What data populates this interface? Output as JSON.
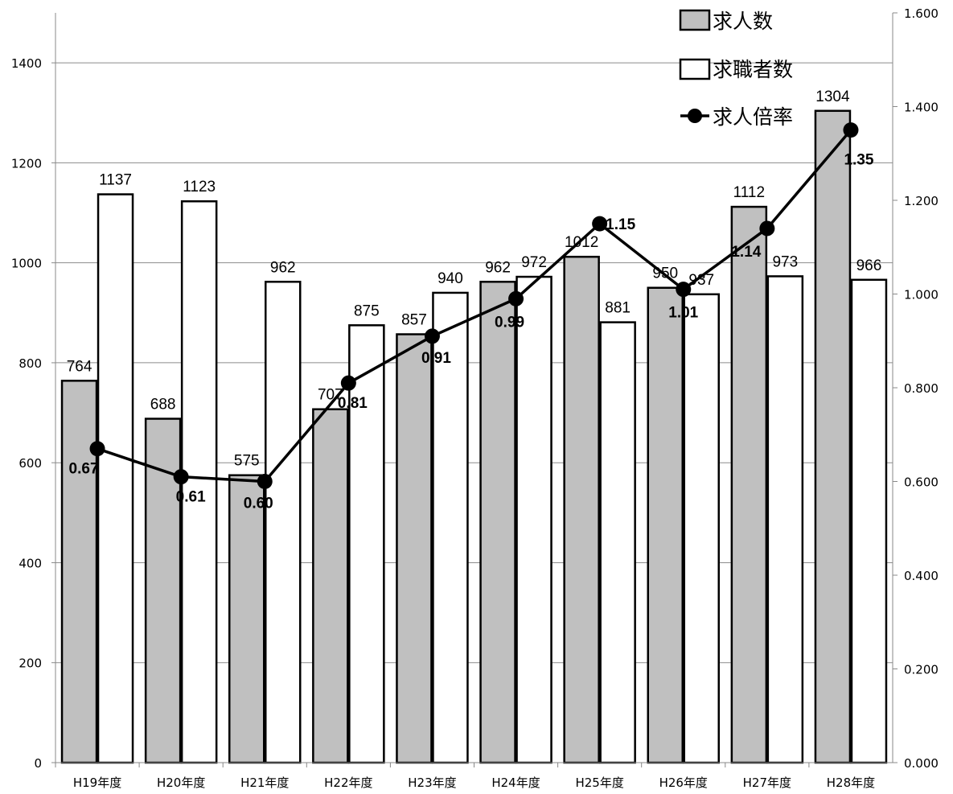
{
  "chart_data": {
    "type": "bar",
    "title": "",
    "categories": [
      "H19年度",
      "H20年度",
      "H21年度",
      "H22年度",
      "H23年度",
      "H24年度",
      "H25年度",
      "H26年度",
      "H27年度",
      "H28年度"
    ],
    "series": [
      {
        "name": "求人数",
        "type": "bar",
        "axis": "left",
        "color": "#c0c0c0",
        "values": [
          764,
          688,
          575,
          707,
          857,
          962,
          1012,
          950,
          1112,
          1304
        ],
        "labels": [
          "764",
          "688",
          "575",
          "707",
          "857",
          "962",
          "1012",
          "950",
          "1112",
          "1304"
        ]
      },
      {
        "name": "求職者数",
        "type": "bar",
        "axis": "left",
        "color": "#ffffff",
        "values": [
          1137,
          1123,
          962,
          875,
          940,
          972,
          881,
          937,
          973,
          966
        ],
        "labels": [
          "1137",
          "1123",
          "962",
          "875",
          "940",
          "972",
          "881",
          "937",
          "973",
          "966"
        ]
      },
      {
        "name": "求人倍率",
        "type": "line",
        "axis": "right",
        "color": "#000000",
        "values": [
          0.67,
          0.61,
          0.6,
          0.81,
          0.91,
          0.99,
          1.15,
          1.01,
          1.14,
          1.35
        ],
        "labels": [
          "0.67",
          "0.61",
          "0.60",
          "0.81",
          "0.91",
          "0.99",
          "1.15",
          "1.01",
          "1.14",
          "1.35"
        ]
      }
    ],
    "y_left": {
      "range": [
        0,
        1500
      ],
      "ticks": [
        0,
        200,
        400,
        600,
        800,
        1000,
        1200,
        1400
      ],
      "tick_labels": [
        "0",
        "200",
        "400",
        "600",
        "800",
        "1000",
        "1200",
        "1400"
      ]
    },
    "y_right": {
      "range": [
        0,
        1.6
      ],
      "ticks": [
        0,
        0.2,
        0.4,
        0.6,
        0.8,
        1.0,
        1.2,
        1.4,
        1.6
      ],
      "tick_labels": [
        "0.000",
        "0.200",
        "0.400",
        "0.600",
        "0.800",
        "1.000",
        "1.200",
        "1.400",
        "1.600"
      ]
    },
    "grid": true,
    "legend": "top-right"
  }
}
